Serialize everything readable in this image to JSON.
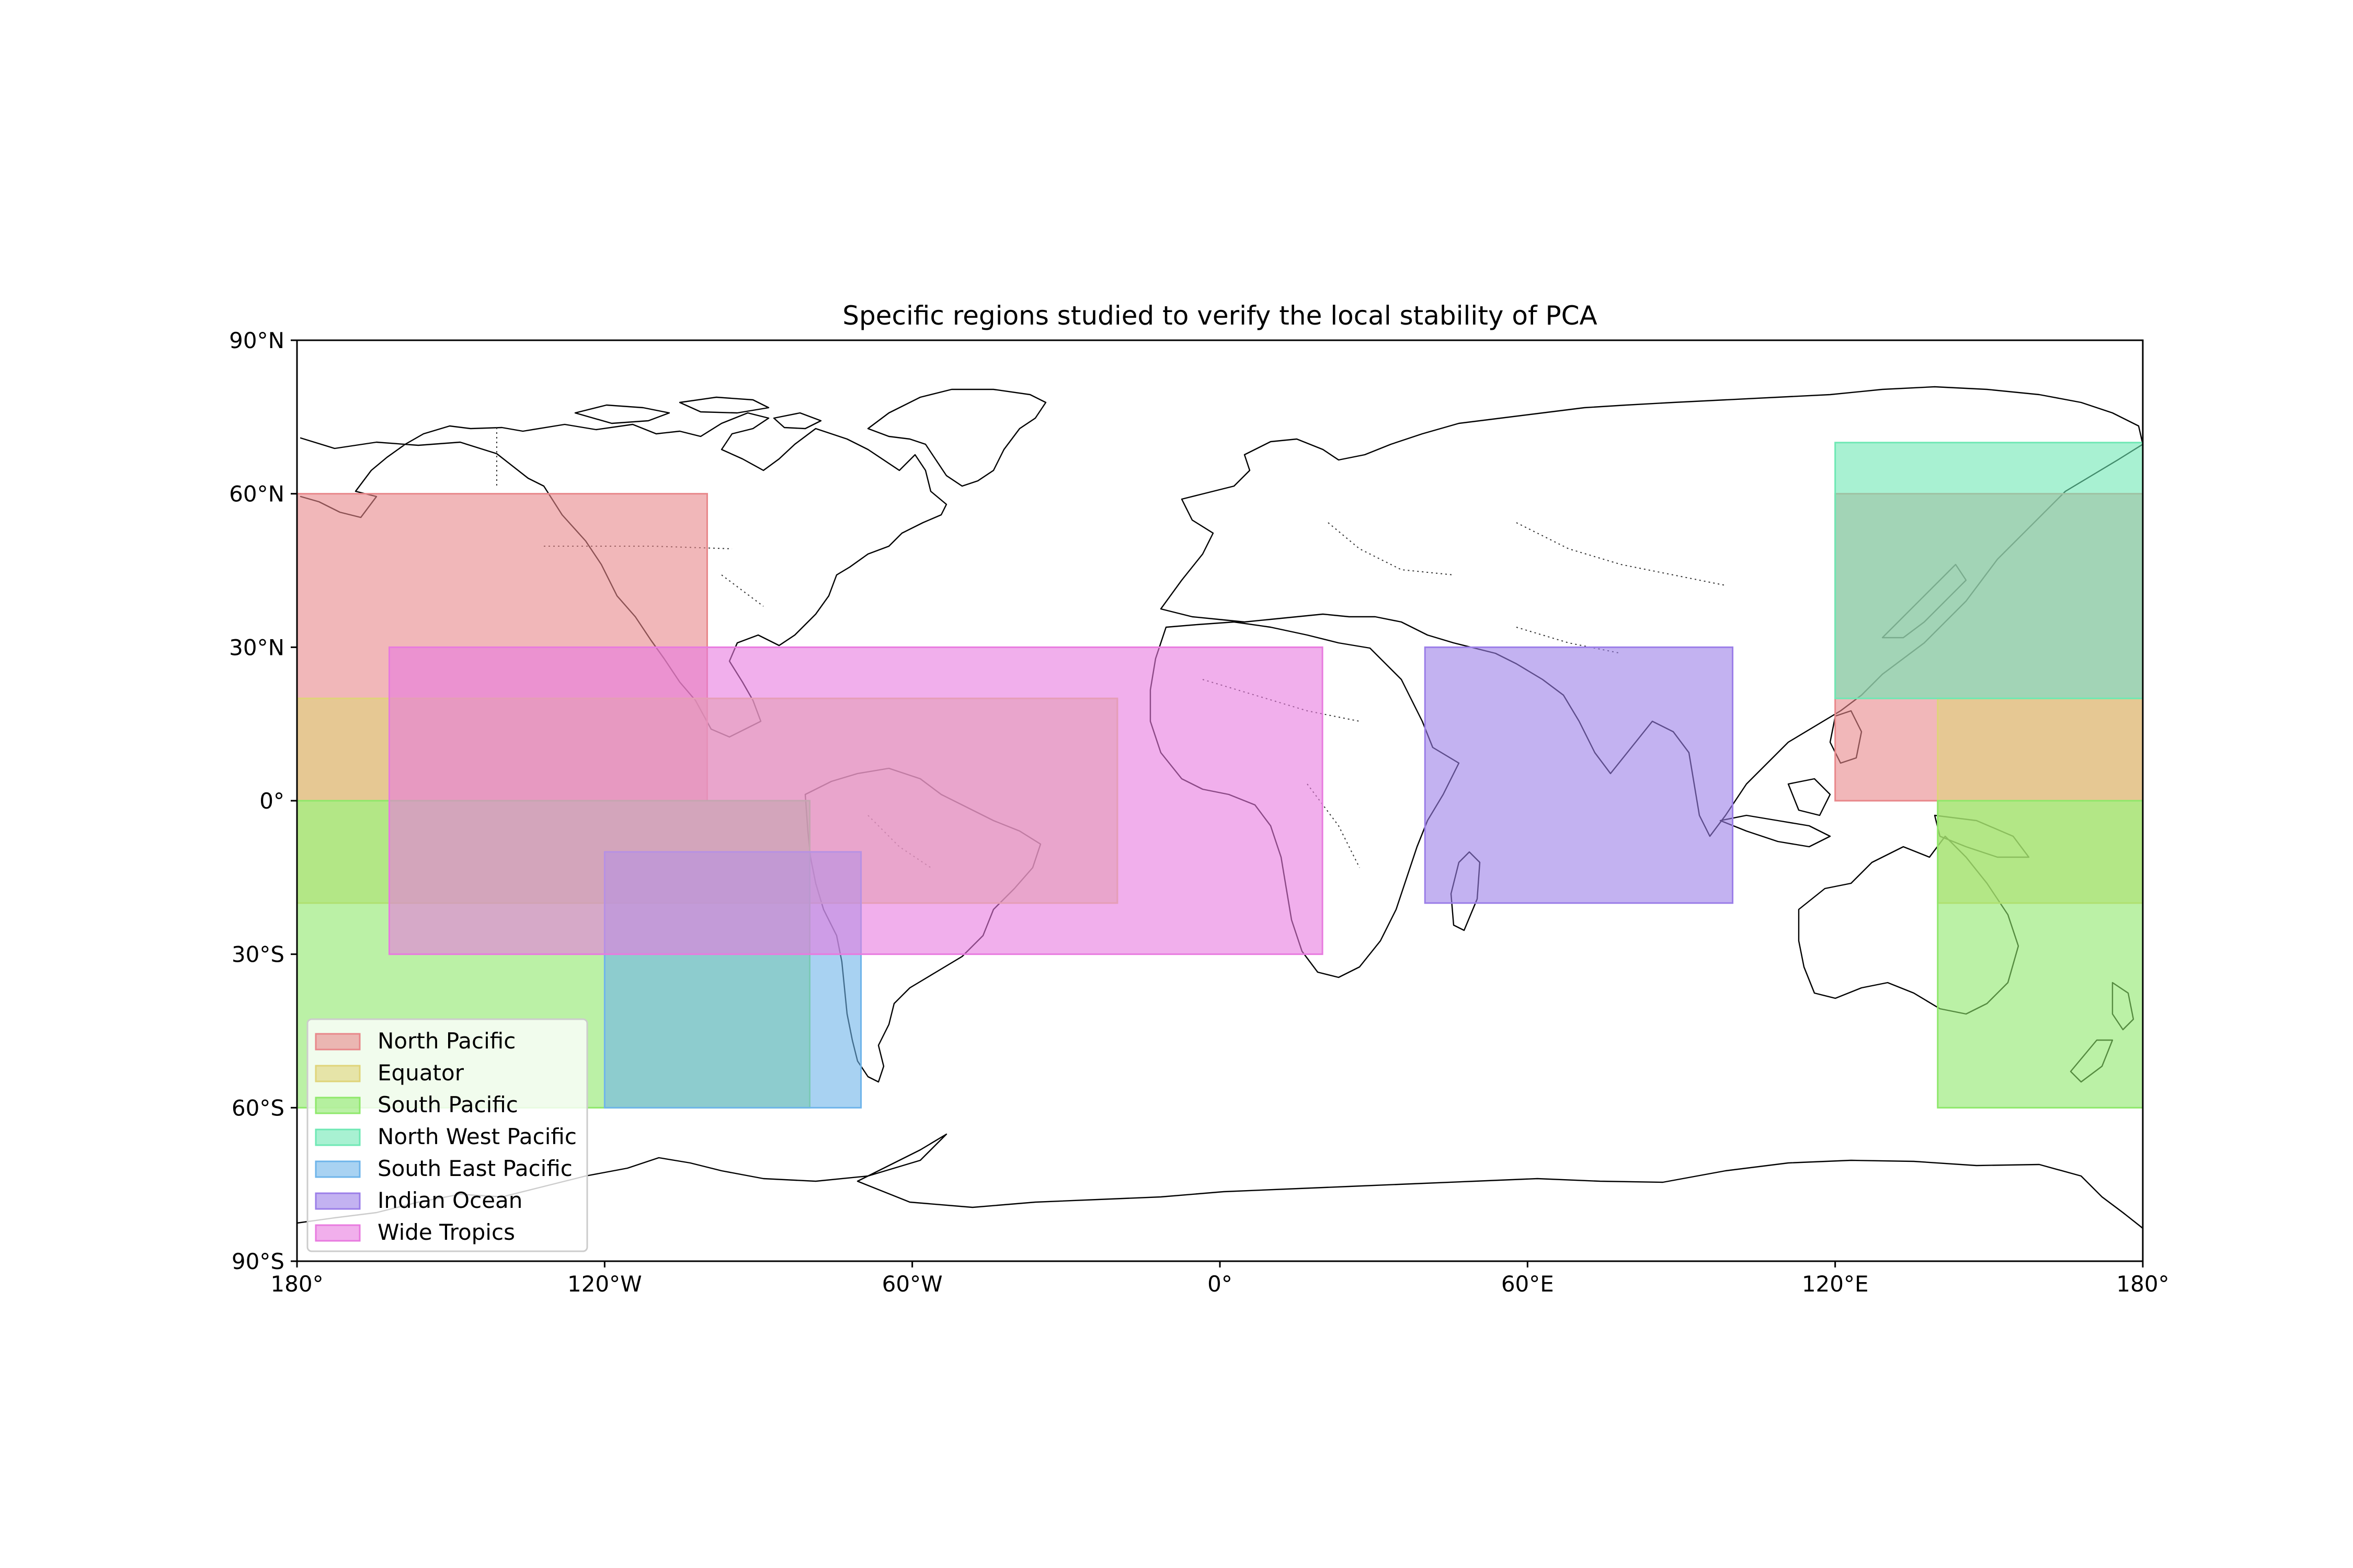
{
  "title": "Specific regions studied to verify the local stability of PCA",
  "map": {
    "projection": "PlateCarree",
    "lon_range": [
      -180,
      180
    ],
    "lat_range": [
      -90,
      90
    ],
    "x_ticks": [
      {
        "value": -180,
        "label": "180°"
      },
      {
        "value": -120,
        "label": "120°W"
      },
      {
        "value": -60,
        "label": "60°W"
      },
      {
        "value": 0,
        "label": "0°"
      },
      {
        "value": 60,
        "label": "60°E"
      },
      {
        "value": 120,
        "label": "120°E"
      },
      {
        "value": 180,
        "label": "180°"
      }
    ],
    "y_ticks": [
      {
        "value": 90,
        "label": "90°N"
      },
      {
        "value": 60,
        "label": "60°N"
      },
      {
        "value": 30,
        "label": "30°N"
      },
      {
        "value": 0,
        "label": "0°"
      },
      {
        "value": -30,
        "label": "30°S"
      },
      {
        "value": -60,
        "label": "60°S"
      },
      {
        "value": -90,
        "label": "90°S"
      }
    ],
    "legend_position": "lower-left"
  },
  "regions": [
    {
      "name": "North Pacific",
      "color": "#e8878a",
      "boxes": [
        {
          "lon": [
            -180,
            -100
          ],
          "lat": [
            0,
            60
          ]
        },
        {
          "lon": [
            120,
            180
          ],
          "lat": [
            0,
            60
          ]
        }
      ]
    },
    {
      "name": "Equator",
      "color": "#e0d479",
      "boxes": [
        {
          "lon": [
            -180,
            -20
          ],
          "lat": [
            -20,
            20
          ]
        },
        {
          "lon": [
            140,
            180
          ],
          "lat": [
            -20,
            20
          ]
        }
      ]
    },
    {
      "name": "South Pacific",
      "color": "#8ee86a",
      "boxes": [
        {
          "lon": [
            -180,
            -80
          ],
          "lat": [
            -60,
            0
          ]
        },
        {
          "lon": [
            140,
            180
          ],
          "lat": [
            -60,
            0
          ]
        }
      ]
    },
    {
      "name": "North West Pacific",
      "color": "#6ee8b4",
      "boxes": [
        {
          "lon": [
            120,
            180
          ],
          "lat": [
            20,
            70
          ]
        }
      ]
    },
    {
      "name": "South East Pacific",
      "color": "#6eb4ea",
      "boxes": [
        {
          "lon": [
            -120,
            -70
          ],
          "lat": [
            -60,
            -10
          ]
        }
      ]
    },
    {
      "name": "Indian Ocean",
      "color": "#9b7ee8",
      "boxes": [
        {
          "lon": [
            40,
            100
          ],
          "lat": [
            -20,
            30
          ]
        }
      ]
    },
    {
      "name": "Wide Tropics",
      "color": "#e87adf",
      "boxes": [
        {
          "lon": [
            -162,
            20
          ],
          "lat": [
            -30,
            30
          ]
        }
      ]
    }
  ]
}
